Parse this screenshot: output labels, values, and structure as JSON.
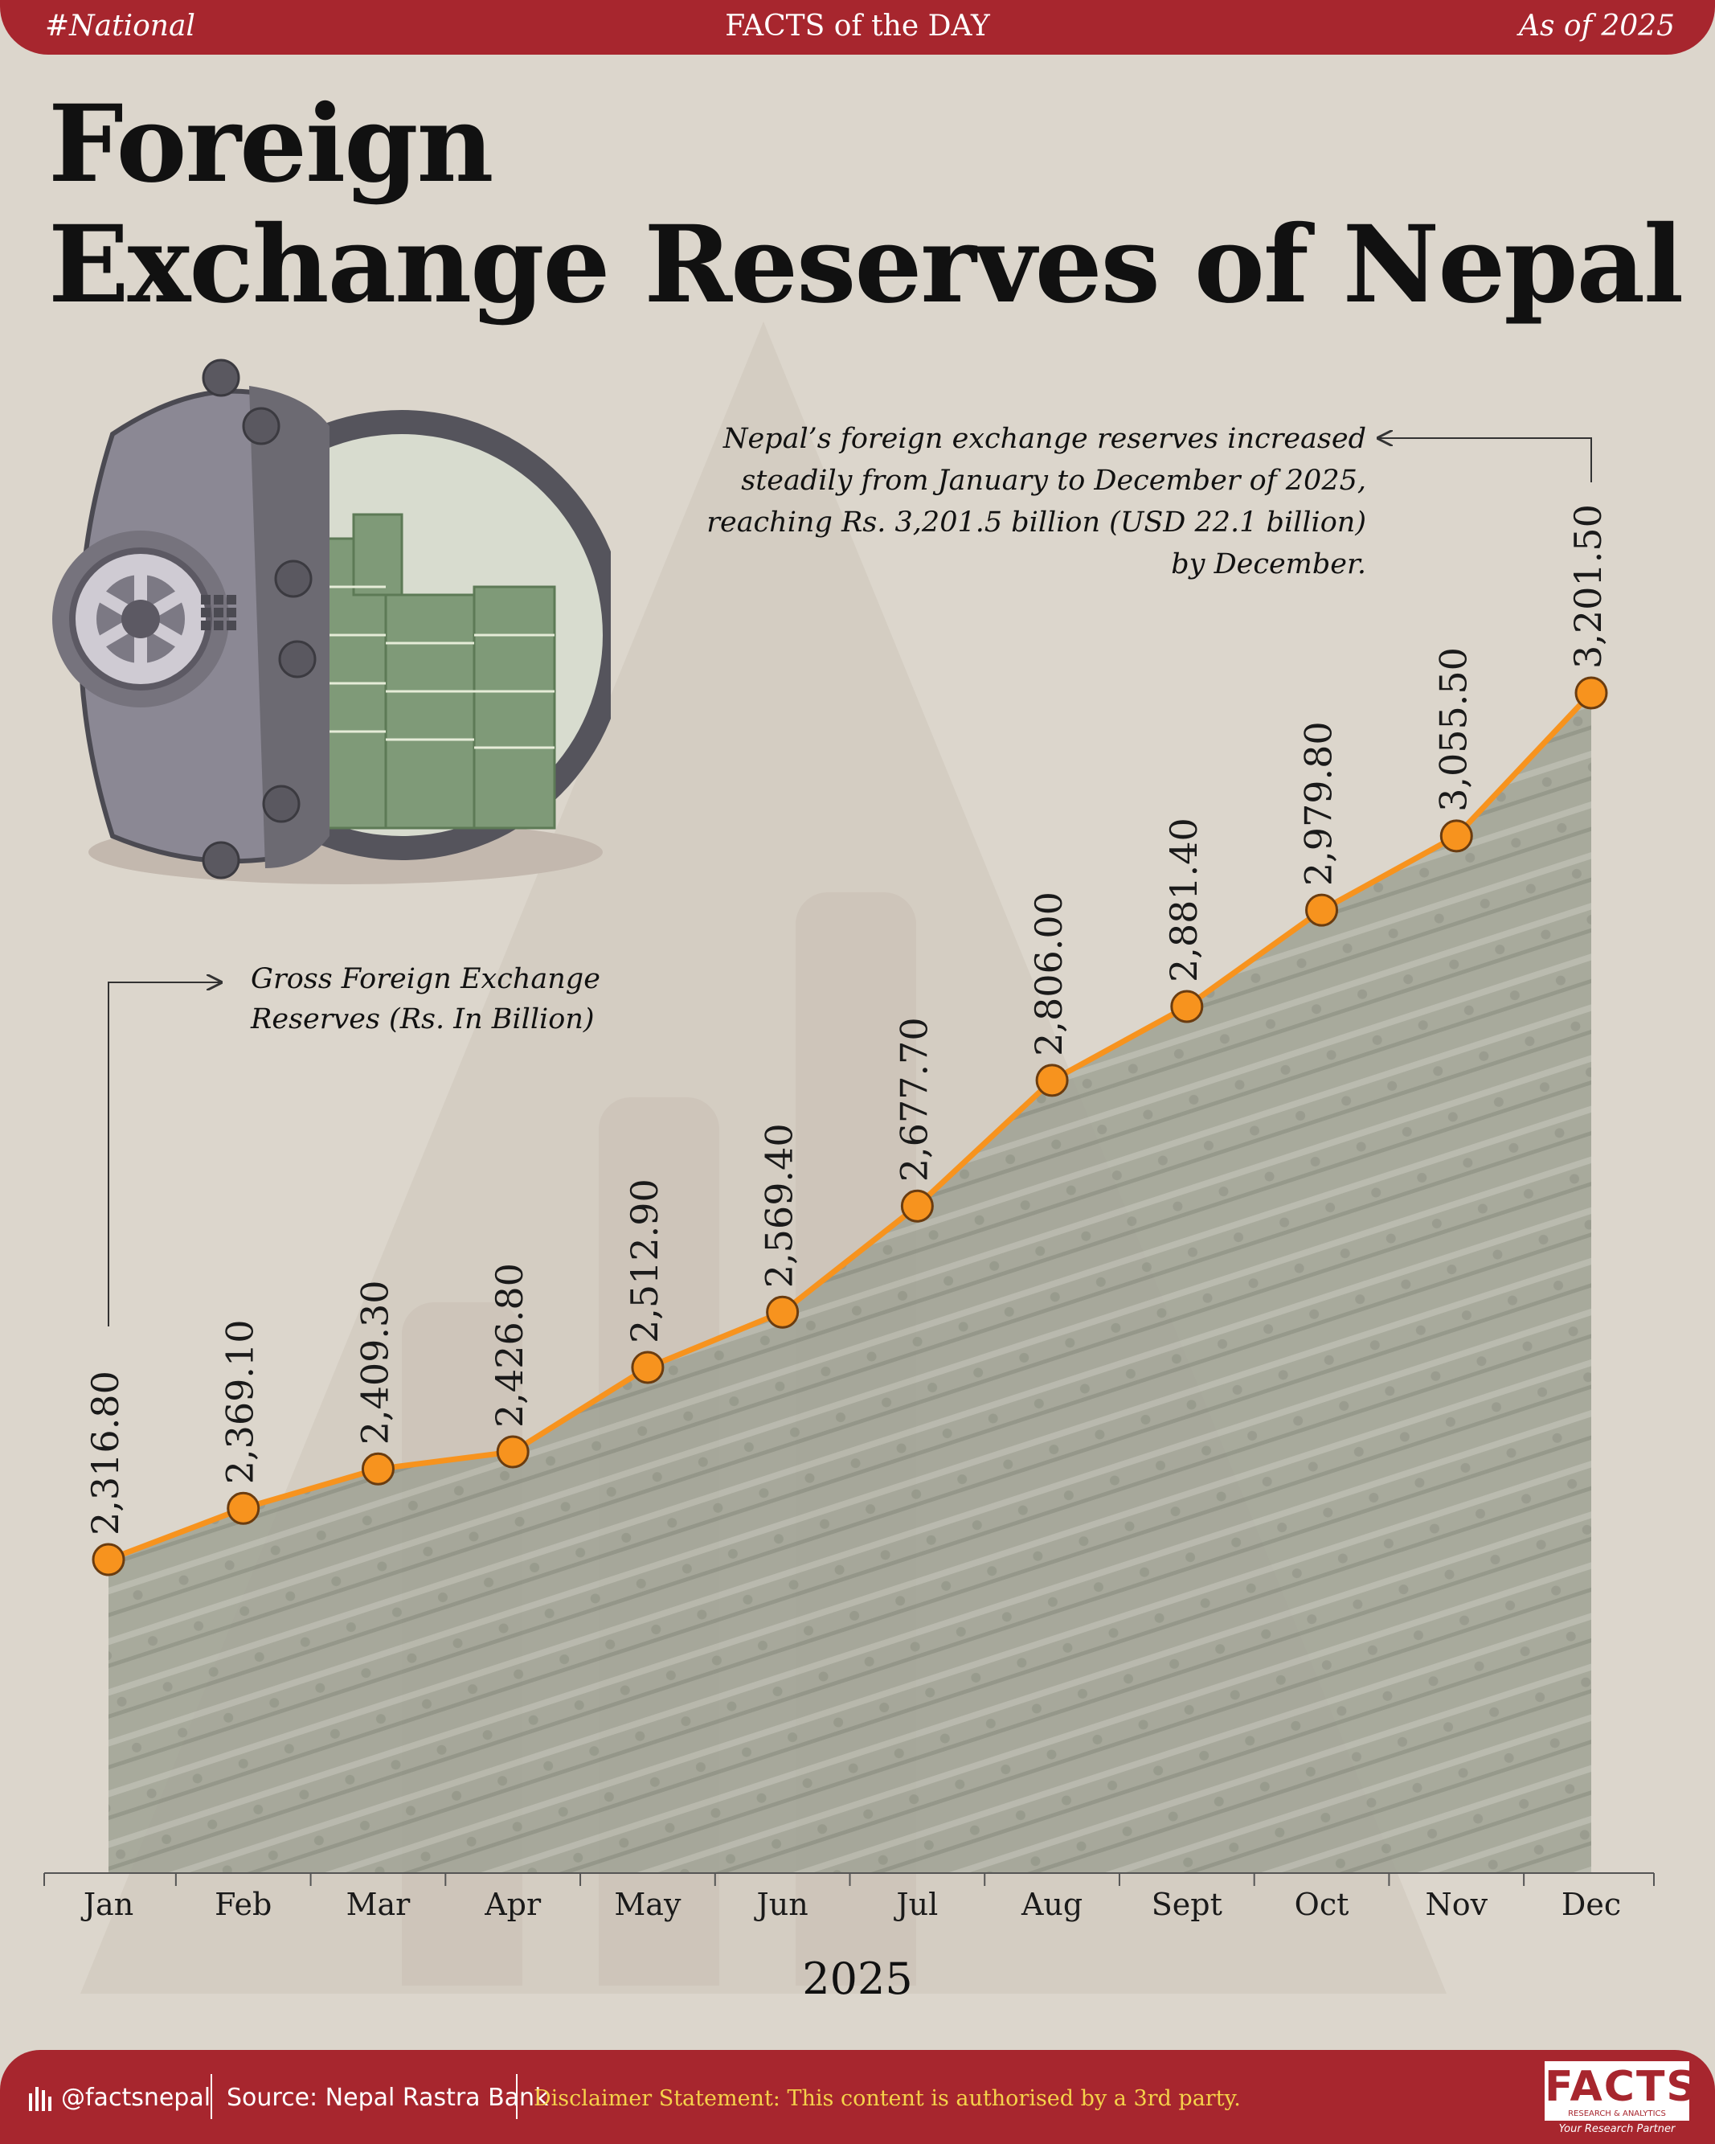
{
  "header": {
    "tag": "#National",
    "center": "FACTS of the DAY",
    "as_of": "As of 2025"
  },
  "title": {
    "line1": "Foreign",
    "line2": "Exchange Reserves of Nepal"
  },
  "annotation": {
    "note_lines": [
      "Nepal’s foreign exchange reserves increased",
      "steadily from January to December of 2025,",
      "reaching Rs. 3,201.5 billion (USD 22.1 billion)",
      "by December."
    ],
    "series_lines": [
      "Gross Foreign Exchange",
      "Reserves (Rs. In Billion)"
    ]
  },
  "chart_data": {
    "type": "area",
    "title": "Foreign Exchange Reserves of Nepal",
    "series_name": "Gross Foreign Exchange Reserves (Rs. In Billion)",
    "categories": [
      "Jan",
      "Feb",
      "Mar",
      "Apr",
      "May",
      "Jun",
      "Jul",
      "Aug",
      "Sept",
      "Oct",
      "Nov",
      "Dec"
    ],
    "values": [
      2316.8,
      2369.1,
      2409.3,
      2426.8,
      2512.9,
      2569.4,
      2677.7,
      2806.0,
      2881.4,
      2979.8,
      3055.5,
      3201.5
    ],
    "value_labels": [
      "2,316.80",
      "2,369.10",
      "2,409.30",
      "2,426.80",
      "2,512.90",
      "2,569.40",
      "2,677.70",
      "2,806.00",
      "2,881.40",
      "2,979.80",
      "3,055.50",
      "3,201.50"
    ],
    "xlabel": "2025",
    "line_color": "#f7931e",
    "marker_color": "#f7931e"
  },
  "footer": {
    "handle": "@factsnepal",
    "source": "Source: Nepal Rastra Bank",
    "disclaimer": "Disclaimer Statement: This content is authorised by a 3rd party."
  },
  "logo": {
    "name": "FACTS",
    "subtitle": "RESEARCH & ANALYTICS",
    "tagline": "Your Research Partner"
  },
  "colors": {
    "brand_red": "#a7262e",
    "background": "#dcd6cc",
    "area_fill": "#9a9d8f"
  }
}
